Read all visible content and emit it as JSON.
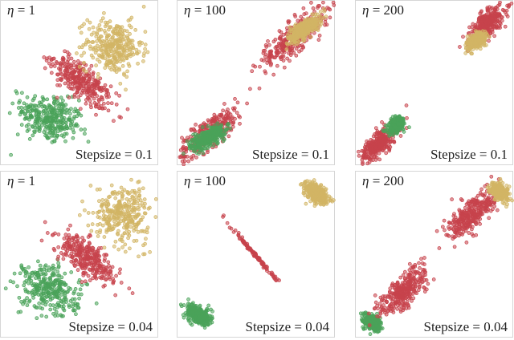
{
  "chart_data": [
    {
      "type": "scatter",
      "eta_label": "η",
      "eta": "1",
      "step_prefix": "Stepsize",
      "stepsize": "0.1",
      "xlim": [
        0,
        1
      ],
      "ylim": [
        0,
        1
      ],
      "grid": false,
      "clusters": [
        {
          "color": "green",
          "center": [
            0.31,
            0.29
          ],
          "spread": [
            0.1,
            0.07
          ],
          "angle": -20
        },
        {
          "color": "red",
          "center": [
            0.51,
            0.51
          ],
          "spread": [
            0.11,
            0.045
          ],
          "angle": -40
        },
        {
          "color": "yellow",
          "center": [
            0.71,
            0.72
          ],
          "spread": [
            0.09,
            0.08
          ],
          "angle": -10
        }
      ]
    },
    {
      "type": "scatter",
      "eta_label": "η",
      "eta": "100",
      "step_prefix": "Stepsize",
      "stepsize": "0.1",
      "xlim": [
        0,
        1
      ],
      "ylim": [
        0,
        1
      ],
      "grid": false,
      "clusters": [
        {
          "color": "red",
          "center": [
            0.2,
            0.2
          ],
          "spread": [
            0.13,
            0.04
          ],
          "angle": 38
        },
        {
          "color": "red",
          "center": [
            0.74,
            0.78
          ],
          "spread": [
            0.14,
            0.04
          ],
          "angle": 38
        },
        {
          "color": "green",
          "center": [
            0.19,
            0.17
          ],
          "spread": [
            0.06,
            0.025
          ],
          "angle": 30
        },
        {
          "color": "yellow",
          "center": [
            0.8,
            0.83
          ],
          "spread": [
            0.06,
            0.022
          ],
          "angle": 35
        }
      ]
    },
    {
      "type": "scatter",
      "eta_label": "η",
      "eta": "200",
      "step_prefix": "Stepsize",
      "stepsize": "0.1",
      "xlim": [
        0,
        1
      ],
      "ylim": [
        0,
        1
      ],
      "grid": false,
      "clusters": [
        {
          "color": "red",
          "center": [
            0.14,
            0.13
          ],
          "spread": [
            0.08,
            0.03
          ],
          "angle": 40
        },
        {
          "color": "red",
          "center": [
            0.83,
            0.86
          ],
          "spread": [
            0.08,
            0.03
          ],
          "angle": 45
        },
        {
          "color": "green",
          "center": [
            0.26,
            0.25
          ],
          "spread": [
            0.03,
            0.018
          ],
          "angle": 40
        },
        {
          "color": "yellow",
          "center": [
            0.76,
            0.76
          ],
          "spread": [
            0.03,
            0.018
          ],
          "angle": 40
        }
      ]
    },
    {
      "type": "scatter",
      "eta_label": "η",
      "eta": "1",
      "step_prefix": "Stepsize",
      "stepsize": "0.04",
      "xlim": [
        0,
        1
      ],
      "ylim": [
        0,
        1
      ],
      "grid": false,
      "clusters": [
        {
          "color": "green",
          "center": [
            0.31,
            0.29
          ],
          "spread": [
            0.1,
            0.07
          ],
          "angle": -20
        },
        {
          "color": "red",
          "center": [
            0.54,
            0.48
          ],
          "spread": [
            0.11,
            0.045
          ],
          "angle": -38
        },
        {
          "color": "yellow",
          "center": [
            0.77,
            0.75
          ],
          "spread": [
            0.09,
            0.08
          ],
          "angle": -10
        }
      ]
    },
    {
      "type": "scatter",
      "eta_label": "η",
      "eta": "100",
      "step_prefix": "Stepsize",
      "stepsize": "0.04",
      "xlim": [
        0,
        1
      ],
      "ylim": [
        0,
        1
      ],
      "grid": false,
      "clusters": [
        {
          "color": "green",
          "center": [
            0.13,
            0.14
          ],
          "spread": [
            0.04,
            0.025
          ],
          "angle": -30
        },
        {
          "color": "red",
          "center": [
            0.5,
            0.49
          ],
          "spread": [
            0.1,
            0.005
          ],
          "angle": -48
        },
        {
          "color": "yellow",
          "center": [
            0.88,
            0.87
          ],
          "spread": [
            0.04,
            0.025
          ],
          "angle": -30
        }
      ]
    },
    {
      "type": "scatter",
      "eta_label": "η",
      "eta": "200",
      "step_prefix": "Stepsize",
      "stepsize": "0.04",
      "xlim": [
        0,
        1
      ],
      "ylim": [
        0,
        1
      ],
      "grid": false,
      "clusters": [
        {
          "color": "green",
          "center": [
            0.1,
            0.1
          ],
          "spread": [
            0.03,
            0.02
          ],
          "angle": -30
        },
        {
          "color": "red",
          "center": [
            0.3,
            0.28
          ],
          "spread": [
            0.1,
            0.04
          ],
          "angle": 42
        },
        {
          "color": "red",
          "center": [
            0.74,
            0.75
          ],
          "spread": [
            0.1,
            0.04
          ],
          "angle": 42
        },
        {
          "color": "yellow",
          "center": [
            0.91,
            0.88
          ],
          "spread": [
            0.03,
            0.02
          ],
          "angle": -30
        }
      ]
    }
  ],
  "colors": {
    "green": "#4aa35a",
    "red": "#c7434c",
    "yellow": "#d2b565"
  }
}
